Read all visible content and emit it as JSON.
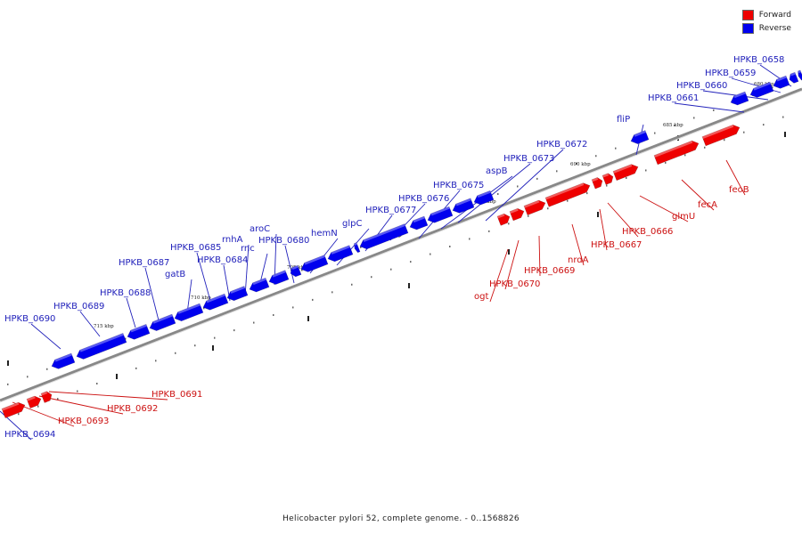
{
  "legend": {
    "forward_label": "Forward",
    "reverse_label": "Reverse",
    "forward_color": "#ee0000",
    "reverse_color": "#0000ee"
  },
  "caption": "Helicobacter pylori 52, complete genome. - 0..1568826",
  "scale_labels": [
    "680 kbp",
    "685 kbp",
    "690 kbp",
    "695 kbp",
    "700 kbp",
    "705 kbp",
    "710 kbp",
    "715 kbp"
  ],
  "reverse_genes": [
    "HPKB_0658",
    "HPKB_0659",
    "HPKB_0660",
    "HPKB_0661",
    "fliP",
    "HPKB_0672",
    "HPKB_0673",
    "aspB",
    "HPKB_0675",
    "HPKB_0676",
    "HPKB_0677",
    "glpC",
    "hemN",
    "HPKB_0680",
    "aroC",
    "rnc",
    "rnhA",
    "HPKB_0684",
    "HPKB_0685",
    "gatB",
    "HPKB_0687",
    "HPKB_0688",
    "HPKB_0689",
    "HPKB_0690",
    "HPKB_0694"
  ],
  "forward_genes": [
    "feoB",
    "fecA",
    "glmU",
    "HPKB_0666",
    "HPKB_0667",
    "nrdA",
    "HPKB_0669",
    "HPKB_0670",
    "ogt",
    "HPKB_0691",
    "HPKB_0692",
    "HPKB_0693"
  ]
}
